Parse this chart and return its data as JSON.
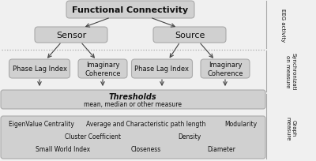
{
  "bg_color": "#f0f0f0",
  "box_color": "#d0d0d0",
  "box_edge_color": "#aaaaaa",
  "arrow_color": "#444444",
  "text_color": "#111111",
  "dashed_line_color": "#aaaaaa",
  "title": "Functional Connectivity",
  "sensor": "Sensor",
  "source": "Source",
  "pli": "Phase Lag Index",
  "ic": "Imaginary\nCoherence",
  "threshold_bold": "Thresholds",
  "threshold_sub": "mean, median or other measure",
  "graph_row1_left": "EigenValue Centrality",
  "graph_row1_mid": "Average and Characteristic path length",
  "graph_row1_right": "Modularity",
  "graph_row2_mid": "Cluster Coefficient",
  "graph_row2_right": "Density",
  "graph_row3_left": "Small World Index",
  "graph_row3_mid": "Closeness",
  "graph_row3_right": "Diameter",
  "label_eeg": "EEG activity",
  "label_sync": "Synchronizati\non measure",
  "label_graph": "Graph\nmeasure"
}
